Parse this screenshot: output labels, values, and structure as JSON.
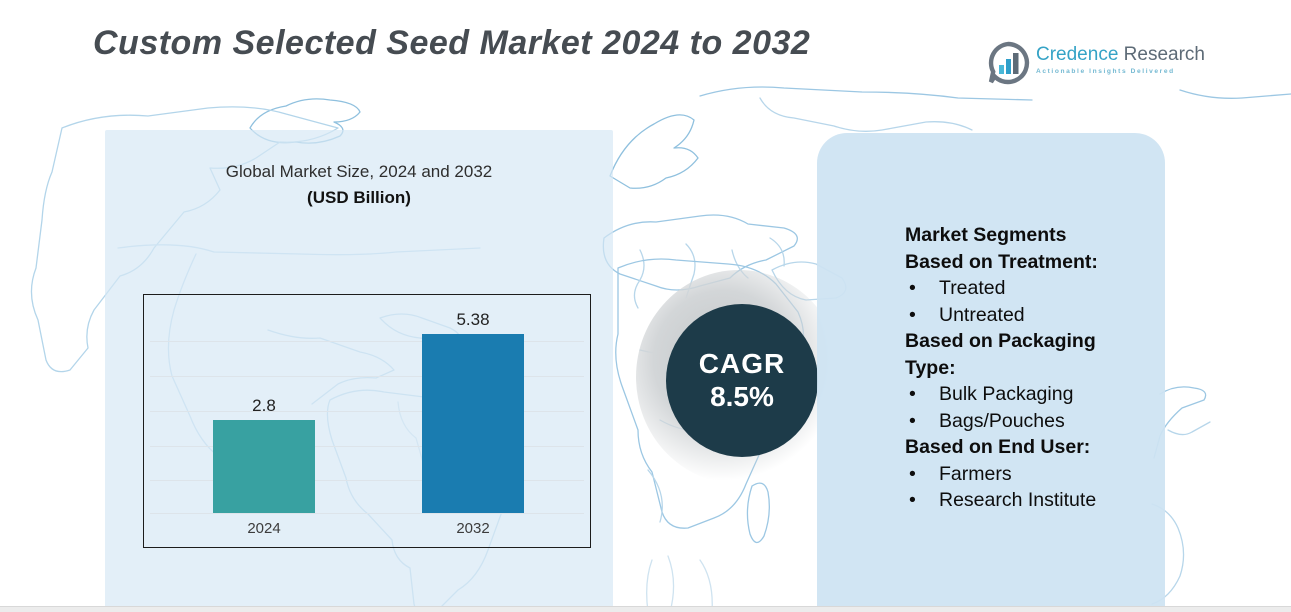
{
  "title": "Custom Selected Seed Market 2024 to 2032",
  "logo": {
    "brand_primary": "Credence",
    "brand_secondary": "Research",
    "tagline": "Actionable Insights Delivered"
  },
  "chart_data": {
    "type": "bar",
    "title": "Global Market Size, 2024 and 2032",
    "subtitle": "(USD Billion)",
    "ylabel": "USD Billion",
    "xlabel": "",
    "categories": [
      "2024",
      "2032"
    ],
    "values": [
      2.8,
      5.38
    ],
    "value_labels": [
      "2.8",
      "5.38"
    ],
    "bar_colors": [
      "#38a1a1",
      "#1a7cb0"
    ],
    "ylim": [
      0,
      6
    ],
    "grid": true,
    "legend": "none"
  },
  "cagr": {
    "label": "CAGR",
    "value": "8.5%"
  },
  "segments": {
    "heading": "Market Segments",
    "groups": [
      {
        "label": "Based on Treatment:",
        "items": [
          "Treated",
          "Untreated"
        ]
      },
      {
        "label": "Based on Packaging Type:",
        "items": [
          "Bulk Packaging",
          "Bags/Pouches"
        ]
      },
      {
        "label": "Based on End User:",
        "items": [
          "Farmers",
          "Research Institute"
        ]
      }
    ]
  },
  "colors": {
    "cagr_circle": "#1d3b49",
    "panel_blue": "#cde3f2",
    "map_stroke": "#a6cde7",
    "brand_blue": "#35a3c6",
    "brand_gray": "#5d6b77",
    "title_gray": "#464c52"
  }
}
